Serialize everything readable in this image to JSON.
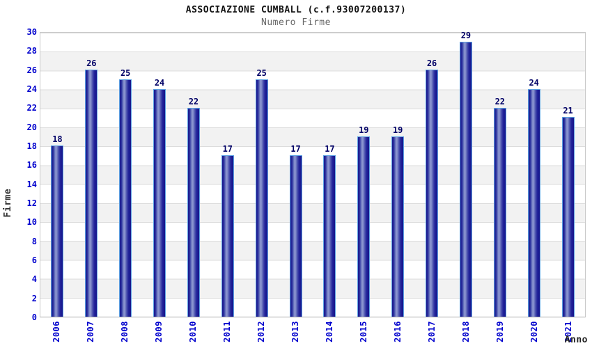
{
  "header": {
    "title": "ASSOCIAZIONE CUMBALL (c.f.93007200137)",
    "subtitle": "Numero Firme"
  },
  "colors": {
    "bar_dark": "#17178c",
    "bar_light": "#8f99d2",
    "bar_border": "#5fa3e3",
    "tick_label": "#0000cd",
    "value_label": "#000066",
    "band_gray": "#f2f2f2",
    "gridline": "#dcdcdc",
    "plot_border": "#c9c9c9",
    "axis_title": "#333333",
    "subtitle_gray": "#666666"
  },
  "chart_data": {
    "type": "bar",
    "title": "ASSOCIAZIONE CUMBALL (c.f.93007200137)",
    "subtitle": "Numero Firme",
    "xlabel": "Anno",
    "ylabel": "Firme",
    "categories": [
      "2006",
      "2007",
      "2008",
      "2009",
      "2010",
      "2011",
      "2012",
      "2013",
      "2014",
      "2015",
      "2016",
      "2017",
      "2018",
      "2019",
      "2020",
      "2021"
    ],
    "values": [
      18,
      26,
      25,
      24,
      22,
      17,
      25,
      17,
      17,
      19,
      19,
      26,
      29,
      22,
      24,
      21
    ],
    "ylim": [
      0,
      30
    ],
    "yticks": [
      0,
      2,
      4,
      6,
      8,
      10,
      12,
      14,
      16,
      18,
      20,
      22,
      24,
      26,
      28,
      30
    ],
    "grid": "horizontal alternating bands, gridline every 2 units",
    "legend": "none",
    "value_labels": true
  }
}
